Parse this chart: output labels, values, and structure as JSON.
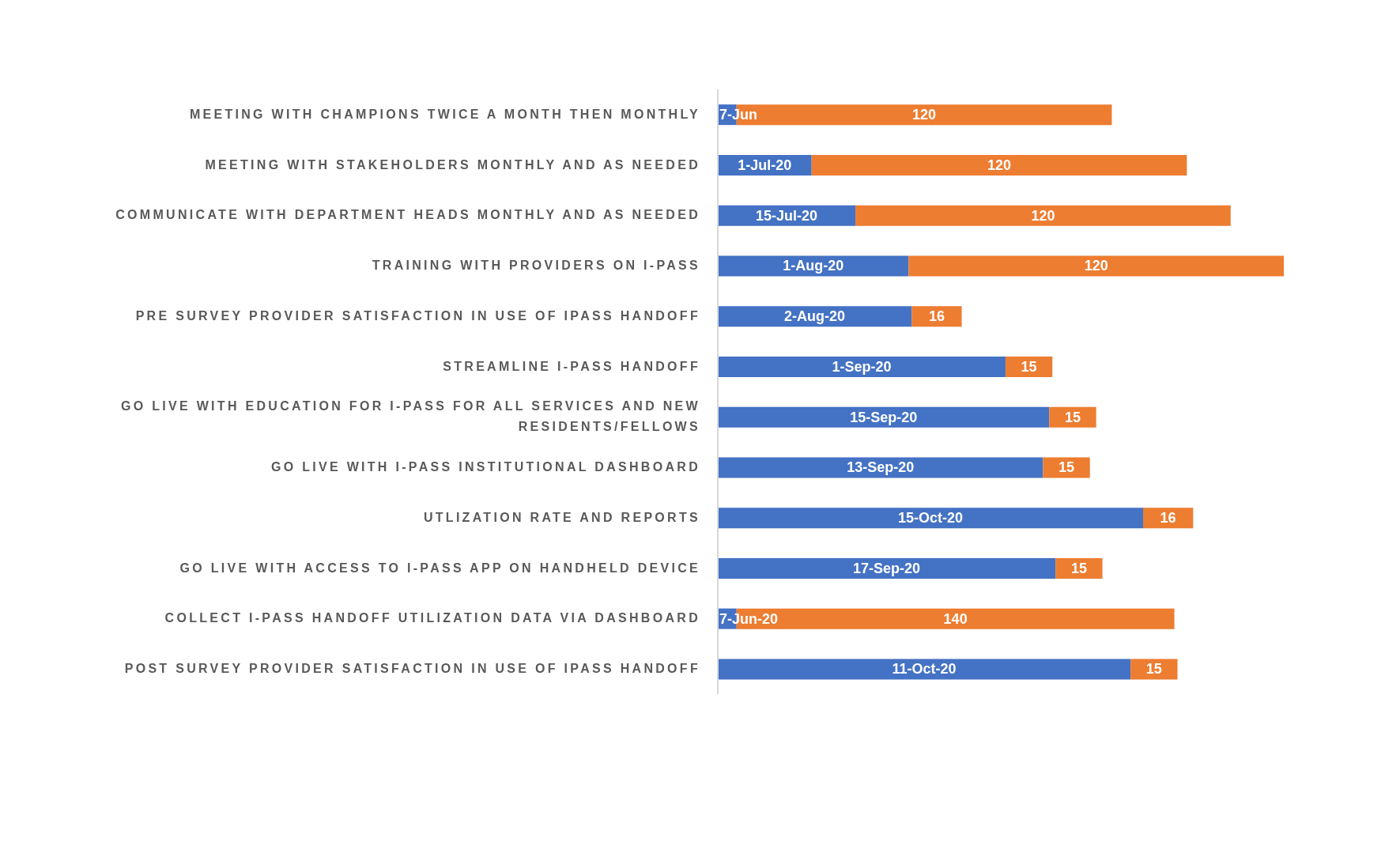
{
  "chart_data": {
    "type": "bar",
    "orientation": "horizontal",
    "stacked": true,
    "categories": [
      "MEETING WITH CHAMPIONS TWICE A MONTH THEN MONTHLY",
      "MEETING WITH STAKEHOLDERS MONTHLY AND AS NEEDED",
      "COMMUNICATE WITH DEPARTMENT HEADS MONTHLY AND AS NEEDED",
      "TRAINING WITH PROVIDERS ON I-PASS",
      "PRE SURVEY PROVIDER SATISFACTION IN USE OF IPASS HANDOFF",
      "STREAMLINE I-PASS HANDOFF",
      "GO LIVE WITH EDUCATION FOR I-PASS FOR ALL SERVICES AND NEW RESIDENTS/FELLOWS",
      "GO LIVE WITH I-PASS INSTITUTIONAL DASHBOARD",
      "UTLIZATION RATE AND REPORTS",
      "GO LIVE WITH ACCESS TO I-PASS APP ON HANDHELD DEVICE",
      "COLLECT I-PASS HANDOFF UTILIZATION DATA VIA DASHBOARD",
      "POST SURVEY PROVIDER SATISFACTION IN USE OF IPASS HANDOFF"
    ],
    "series": [
      {
        "color": "#4472c4",
        "values": [
          6,
          30,
          44,
          61,
          62,
          92,
          106,
          104,
          136,
          108,
          6,
          132
        ],
        "value_labels": [
          "7-Jun",
          "1-Jul-20",
          "15-Jul-20",
          "1-Aug-20",
          "2-Aug-20",
          "1-Sep-20",
          "15-Sep-20",
          "13-Sep-20",
          "15-Oct-20",
          "17-Sep-20",
          "7-Jun-20",
          "11-Oct-20"
        ]
      },
      {
        "color": "#ed7d31",
        "values": [
          120,
          120,
          120,
          120,
          16,
          15,
          15,
          15,
          16,
          15,
          140,
          15
        ],
        "value_labels": [
          "120",
          "120",
          "120",
          "120",
          "16",
          "15",
          "15",
          "15",
          "16",
          "15",
          "140",
          "15"
        ]
      }
    ]
  }
}
